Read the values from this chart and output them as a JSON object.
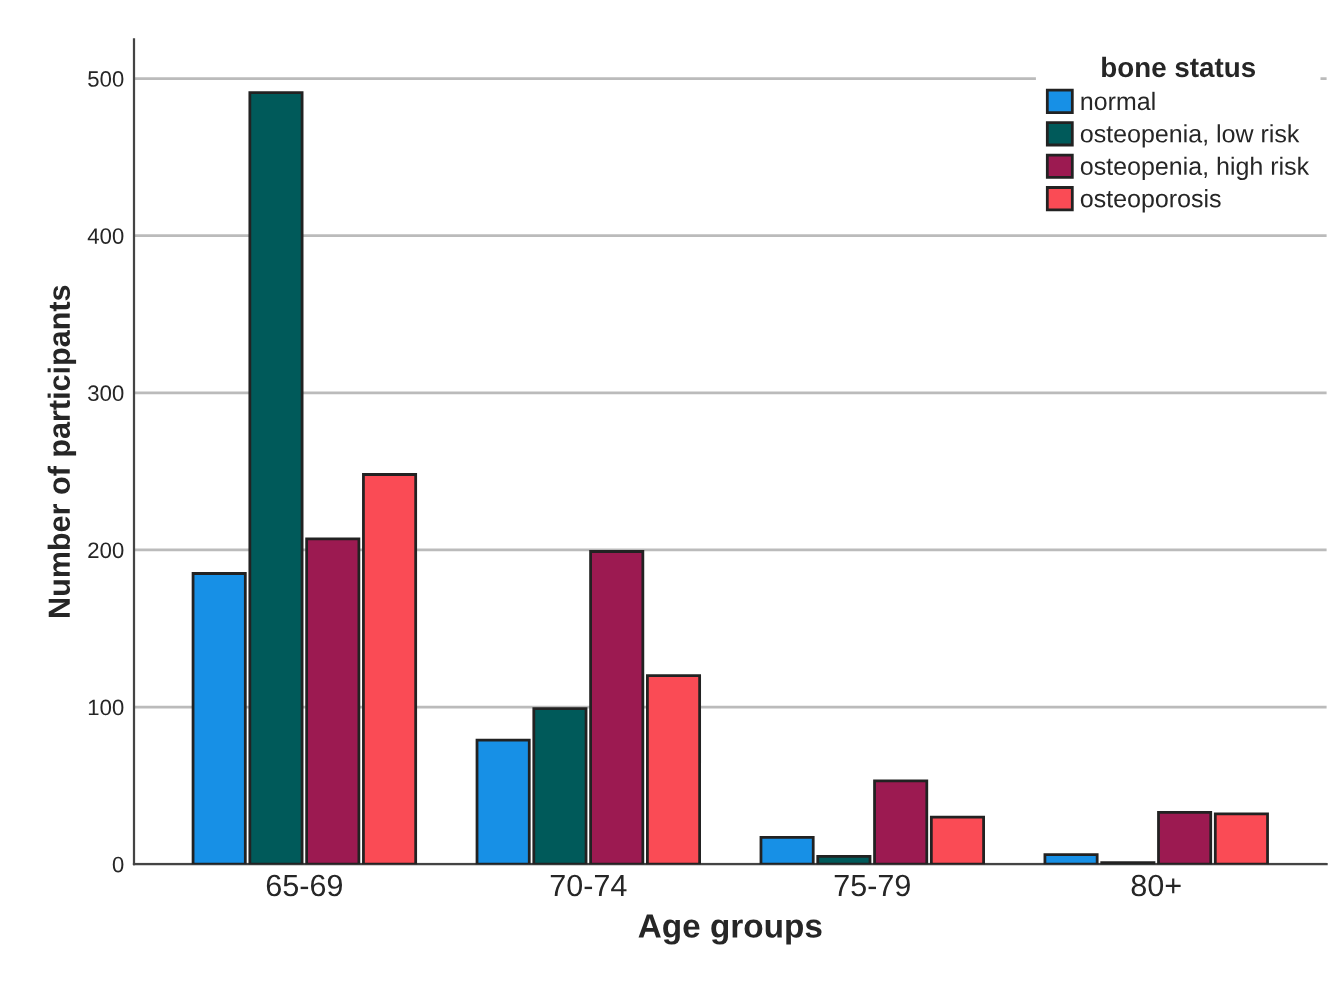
{
  "chart_data": {
    "type": "bar",
    "xlabel": "Age groups",
    "ylabel": "Number of participants",
    "legend_title": "bone status",
    "categories": [
      "65-69",
      "70-74",
      "75-79",
      "80+"
    ],
    "series": [
      {
        "name": "normal",
        "color": "#1790e6",
        "values": [
          185,
          79,
          17,
          6
        ]
      },
      {
        "name": "osteopenia, low risk",
        "color": "#005a5a",
        "values": [
          491,
          99,
          5,
          1
        ]
      },
      {
        "name": "osteopenia, high risk",
        "color": "#9c1a51",
        "values": [
          207,
          199,
          53,
          33
        ]
      },
      {
        "name": "osteoporosis",
        "color": "#fa4b55",
        "values": [
          248,
          120,
          30,
          32
        ]
      }
    ],
    "ylim": [
      0,
      525
    ],
    "yticks": [
      0,
      100,
      200,
      300,
      400,
      500
    ],
    "grid": "y",
    "legend": "top right"
  }
}
